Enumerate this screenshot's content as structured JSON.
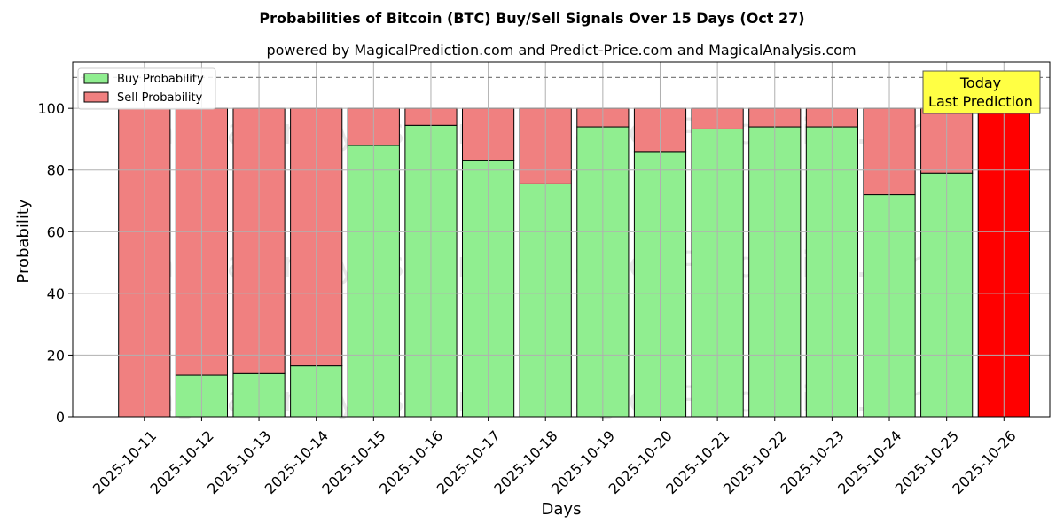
{
  "chart_data": {
    "type": "bar",
    "stacked": true,
    "title": "Probabilities of Bitcoin (BTC) Buy/Sell Signals Over 15 Days (Oct 27)",
    "subtitle": "powered by MagicalPrediction.com and Predict-Price.com and MagicalAnalysis.com",
    "xlabel": "Days",
    "ylabel": "Probability",
    "ylim": [
      0,
      115
    ],
    "yticks": [
      0,
      20,
      40,
      60,
      80,
      100
    ],
    "grid": true,
    "legend_position": "top-left",
    "reference_line": 110,
    "categories": [
      "2025-10-11",
      "2025-10-12",
      "2025-10-13",
      "2025-10-14",
      "2025-10-15",
      "2025-10-16",
      "2025-10-17",
      "2025-10-18",
      "2025-10-19",
      "2025-10-20",
      "2025-10-21",
      "2025-10-22",
      "2025-10-23",
      "2025-10-24",
      "2025-10-25",
      "2025-10-26"
    ],
    "series": [
      {
        "name": "Buy Probability",
        "color": "#90ee90",
        "values": [
          0,
          13.5,
          14,
          16.5,
          88,
          94.5,
          83,
          75.5,
          94,
          86,
          93.3,
          94,
          94,
          72,
          79,
          0
        ]
      },
      {
        "name": "Sell Probability",
        "color": "#f08080",
        "values": [
          100,
          86.5,
          86,
          83.5,
          12,
          5.5,
          17,
          24.5,
          6,
          14,
          6.7,
          6,
          6,
          28,
          21,
          0
        ]
      }
    ],
    "highlight": {
      "category": "2025-10-26",
      "value": 100,
      "color": "#ff0000"
    },
    "annotation": {
      "lines": [
        "Today",
        "Last Prediction"
      ],
      "background": "#ffff44"
    },
    "watermarks": [
      "MagicalAnalysis.com",
      "MagicalPrediction.com"
    ]
  }
}
